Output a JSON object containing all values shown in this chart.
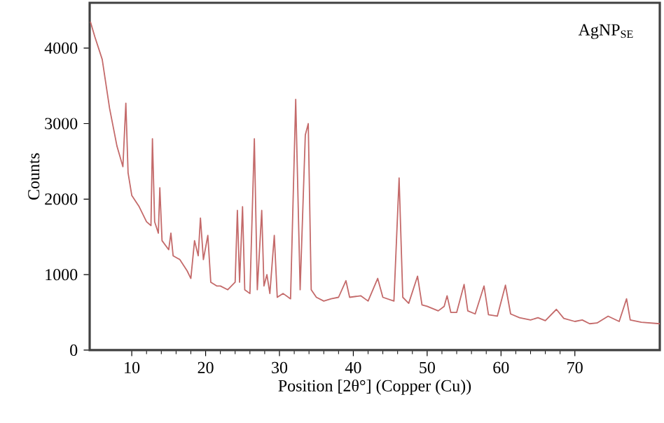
{
  "chart_data": {
    "type": "line",
    "xlabel": "Position [2θ°] (Copper (Cu))",
    "ylabel": "Counts",
    "annotations": [
      "AgNP$_{SE}$"
    ],
    "xlim": [
      4.3,
      81.5
    ],
    "xticks": [
      10,
      20,
      30,
      40,
      50,
      60,
      70
    ],
    "ylim": [
      0,
      4600
    ],
    "yticks": [
      0,
      1000,
      2000,
      3000,
      4000
    ],
    "grid": false,
    "marker": "none",
    "line_style": "solid",
    "series": [
      {
        "color": "#c46a6a",
        "x": [
          4.4,
          5,
          6,
          7,
          8,
          8.8,
          9.2,
          9.5,
          10,
          11,
          12,
          12.6,
          12.8,
          13.1,
          13.6,
          13.8,
          14.1,
          15,
          15.3,
          15.6,
          16.5,
          17.5,
          18,
          18.5,
          19,
          19.3,
          19.7,
          20.3,
          20.7,
          21.5,
          22,
          23,
          24,
          24.3,
          24.6,
          25,
          25.3,
          26,
          26.6,
          27,
          27.6,
          27.9,
          28.3,
          28.7,
          29.3,
          29.7,
          30.5,
          31.5,
          32.2,
          32.8,
          33.5,
          33.9,
          34.3,
          35,
          36,
          37,
          38,
          39,
          39.5,
          41,
          42,
          43.3,
          44,
          45.5,
          46.2,
          46.7,
          47.5,
          48.7,
          49.3,
          50,
          51.5,
          52.3,
          52.7,
          53.2,
          54,
          55,
          55.5,
          56.5,
          57.7,
          58.3,
          59.5,
          60.6,
          61.3,
          62.5,
          64,
          65,
          66,
          67.5,
          68.5,
          70,
          71,
          72,
          73,
          74.5,
          76,
          77,
          77.5,
          79,
          81.5
        ],
        "values": [
          4350,
          4150,
          3850,
          3200,
          2700,
          2430,
          3270,
          2350,
          2050,
          1900,
          1700,
          1650,
          2800,
          1700,
          1550,
          2150,
          1450,
          1330,
          1550,
          1250,
          1200,
          1050,
          950,
          1450,
          1250,
          1750,
          1200,
          1520,
          900,
          850,
          850,
          800,
          900,
          1850,
          900,
          1900,
          800,
          750,
          2800,
          800,
          1850,
          850,
          1000,
          750,
          1520,
          700,
          750,
          680,
          3320,
          800,
          2850,
          3000,
          800,
          700,
          650,
          680,
          700,
          920,
          700,
          720,
          650,
          950,
          700,
          650,
          2280,
          700,
          620,
          980,
          600,
          580,
          520,
          580,
          720,
          500,
          500,
          870,
          520,
          480,
          850,
          470,
          450,
          860,
          480,
          430,
          400,
          430,
          390,
          540,
          420,
          380,
          400,
          350,
          360,
          450,
          380,
          680,
          400,
          370,
          350
        ]
      }
    ]
  }
}
